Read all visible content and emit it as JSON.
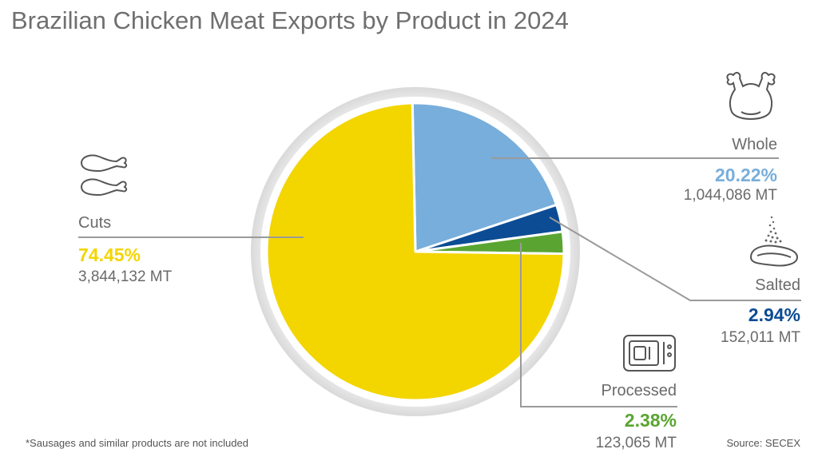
{
  "title": "Brazilian Chicken Meat Exports by Product in 2024",
  "footnote": "*Sausages and similar products are not included",
  "source": "Source: SECEX",
  "colors": {
    "cuts": "#f3d500",
    "whole": "#78aedb",
    "salted": "#0b4c94",
    "processed": "#5aa532",
    "leader": "#9a9a9a",
    "ring": "#e6e6e6"
  },
  "chart_data": {
    "type": "pie",
    "title": "Brazilian Chicken Meat Exports by Product in 2024",
    "slices": [
      {
        "label": "Cuts",
        "percent": 74.45,
        "value_text": "74.45%",
        "volume": 3844132,
        "volume_text": "3,844,132 MT",
        "color": "#f3d500",
        "icon": "chicken-drumstick-icon"
      },
      {
        "label": "Whole",
        "percent": 20.22,
        "value_text": "20.22%",
        "volume": 1044086,
        "volume_text": "1,044,086 MT",
        "color": "#78aedb",
        "icon": "whole-chicken-icon"
      },
      {
        "label": "Salted",
        "percent": 2.94,
        "value_text": "2.94%",
        "volume": 152011,
        "volume_text": "152,011 MT",
        "color": "#0b4c94",
        "icon": "salted-meat-icon"
      },
      {
        "label": "Processed",
        "percent": 2.38,
        "value_text": "2.38%",
        "volume": 123065,
        "volume_text": "123,065 MT",
        "color": "#5aa532",
        "icon": "microwave-icon"
      }
    ]
  }
}
